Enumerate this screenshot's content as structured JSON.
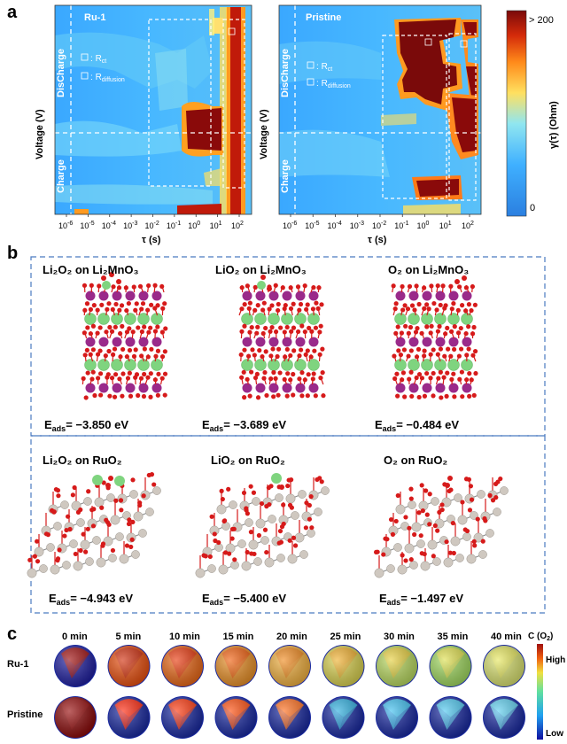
{
  "panel_a": {
    "label": "a",
    "maps": [
      {
        "title": "Ru-1",
        "legend_rct": "R",
        "legend_rct_sub": "ct",
        "legend_rdiff": "R",
        "legend_rdiff_sub": "diffusion",
        "ylabel": "Voltage (V)",
        "discharge_label": "DisCharge",
        "charge_label": "Charge",
        "xlabel": "τ (s)"
      },
      {
        "title": "Pristine",
        "legend_rct": "R",
        "legend_rct_sub": "ct",
        "legend_rdiff": "R",
        "legend_rdiff_sub": "diffusion",
        "ylabel": "Voltage (V)",
        "discharge_label": "DisCharge",
        "charge_label": "Charge",
        "xlabel": "τ (s)"
      }
    ],
    "xticks": [
      {
        "base": "10",
        "exp": "-6"
      },
      {
        "base": "10",
        "exp": "-5"
      },
      {
        "base": "10",
        "exp": "-4"
      },
      {
        "base": "10",
        "exp": "-3"
      },
      {
        "base": "10",
        "exp": "-2"
      },
      {
        "base": "10",
        "exp": "-1"
      },
      {
        "base": "10",
        "exp": "0"
      },
      {
        "base": "10",
        "exp": "1"
      },
      {
        "base": "10",
        "exp": "2"
      }
    ],
    "colorbar": {
      "top_label": "> 200",
      "bottom_label": "0",
      "title": "γ(τ) (Ohm)",
      "colors": [
        "#2b7fe0",
        "#3fb0ff",
        "#90e6f0",
        "#ffe060",
        "#ff8a1a",
        "#d42a0a",
        "#7a0a0a"
      ]
    }
  },
  "panel_b": {
    "label": "b",
    "structures": [
      {
        "title": "Li₂O₂ on Li₂MnO₃",
        "E": "E",
        "sub": "ads",
        "value": "= −3.850 eV"
      },
      {
        "title": "LiO₂ on Li₂MnO₃",
        "E": "E",
        "sub": "ads",
        "value": "= −3.689 eV"
      },
      {
        "title": "O₂ on Li₂MnO₃",
        "E": "E",
        "sub": "ads",
        "value": "= −0.484 eV"
      },
      {
        "title": "Li₂O₂ on RuO₂",
        "E": "E",
        "sub": "ads",
        "value": "= −4.943 eV"
      },
      {
        "title": "LiO₂ on RuO₂",
        "E": "E",
        "sub": "ads",
        "value": "= −5.400 eV"
      },
      {
        "title": "O₂ on RuO₂",
        "E": "E",
        "sub": "ads",
        "value": "= −1.497 eV"
      }
    ],
    "atom_colors": {
      "O": "#d61a1a",
      "Li": "#7fd47f",
      "Mn": "#9a2a8a",
      "Ru": "#cfc8c0"
    }
  },
  "panel_c": {
    "label": "c",
    "times": [
      "0 min",
      "5 min",
      "10 min",
      "15 min",
      "20 min",
      "25 min",
      "30 min",
      "35 min",
      "40 min"
    ],
    "rows": [
      {
        "name": "Ru-1",
        "inner": [
          "#a01010",
          "#d03010",
          "#e83a10",
          "#f06010",
          "#f08a20",
          "#f0b030",
          "#e8d040",
          "#e0e050",
          "#e8e860"
        ],
        "outer": [
          "#2020a0",
          "#e85010",
          "#e86818",
          "#e89028",
          "#f0b040",
          "#d8d050",
          "#b8d860",
          "#a0d860",
          "#d8e070"
        ]
      },
      {
        "name": "Pristine",
        "inner": [
          "#9a1010",
          "#ff2a10",
          "#ff3a10",
          "#ff5010",
          "#ff7020",
          "#30b0e0",
          "#40c0f0",
          "#50c8f0",
          "#60d0f0"
        ],
        "outer": [
          "#8a0a0a",
          "#1a2aa0",
          "#1a2aa0",
          "#1a2aa0",
          "#1a2aa0",
          "#1a2aa0",
          "#1a2aa0",
          "#1a2aa0",
          "#1a2aa0"
        ]
      }
    ],
    "colorbar": {
      "title": "C (O",
      "title_sub": "2",
      "title_end": ")",
      "high": "High",
      "low": "Low"
    }
  }
}
